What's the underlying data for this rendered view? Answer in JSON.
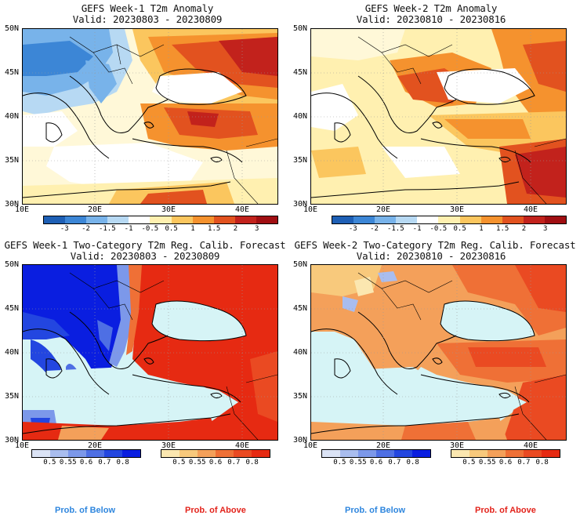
{
  "panels": [
    {
      "title": "GEFS Week-1 T2m Anomaly",
      "valid": "Valid: 20230803 - 20230809"
    },
    {
      "title": "GEFS Week-2 T2m Anomaly",
      "valid": "Valid: 20230810 - 20230816"
    },
    {
      "title": "GEFS Week-1 Two-Category T2m Reg. Calib. Forecast",
      "valid": "Valid: 20230803 - 20230809"
    },
    {
      "title": "GEFS Week-2 Two-Category T2m Reg. Calib. Forecast",
      "valid": "Valid: 20230810 - 20230816"
    }
  ],
  "lat_labels": [
    "50N",
    "45N",
    "40N",
    "35N",
    "30N"
  ],
  "lon_labels": [
    "10E",
    "20E",
    "30E",
    "40E"
  ],
  "anomaly_colorbar": {
    "labels": [
      "-3",
      "-2",
      "-1.5",
      "-1",
      "-0.5",
      "0.5",
      "1",
      "1.5",
      "2",
      "3"
    ],
    "colors": [
      "#1e5fb5",
      "#3c86d6",
      "#78b3ea",
      "#b7d9f3",
      "#ffffff",
      "#fff0b0",
      "#fbc65e",
      "#f5922e",
      "#e2521f",
      "#c2221c",
      "#a00e12"
    ]
  },
  "below_colorbar": {
    "labels": [
      "0.5",
      "0.55",
      "0.6",
      "0.7",
      "0.8"
    ],
    "colors": [
      "#dbe3f5",
      "#a9bdef",
      "#7c98ea",
      "#4e6fe4",
      "#2346e0",
      "#0a1ee0"
    ]
  },
  "above_colorbar": {
    "labels": [
      "0.5",
      "0.55",
      "0.6",
      "0.7",
      "0.8"
    ],
    "colors": [
      "#fbe7b0",
      "#f8c97c",
      "#f4a05a",
      "#ef7036",
      "#ea4a22",
      "#e62a12"
    ]
  },
  "legend": {
    "below": "Prob. of Below",
    "above": "Prob. of Above"
  },
  "colors": {
    "below_text": "#2e86de",
    "above_text": "#e3231b",
    "sea": "#d6f4f6"
  }
}
